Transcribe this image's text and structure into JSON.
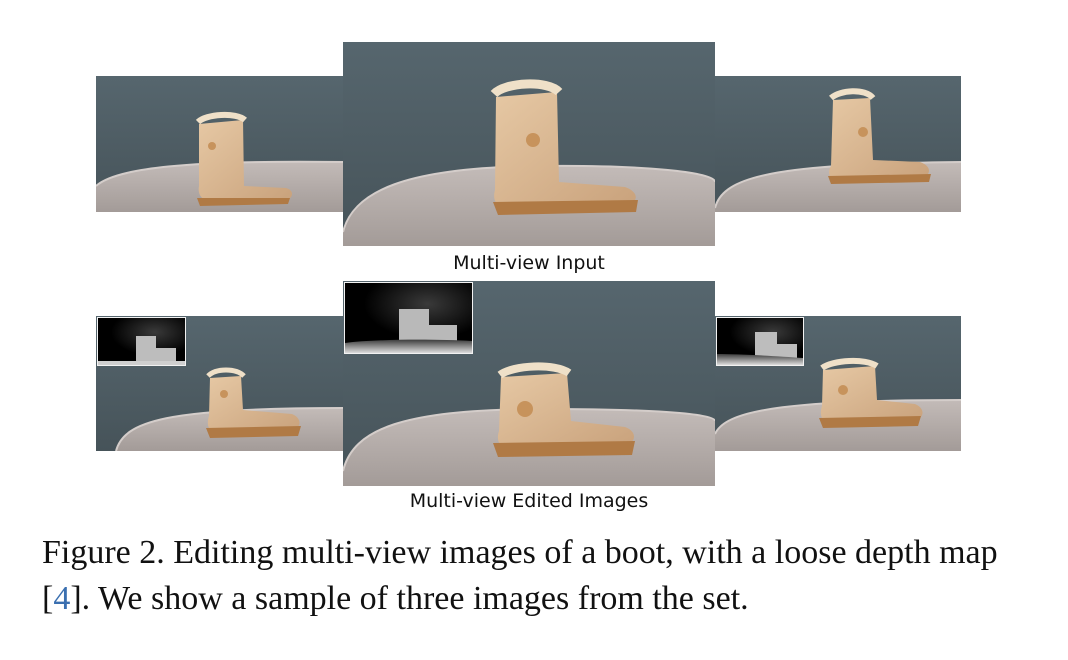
{
  "top_row": {
    "label": "Multi-view Input",
    "images": [
      {
        "name": "input-view-left",
        "kind": "photo",
        "subject": "boot"
      },
      {
        "name": "input-view-center",
        "kind": "photo",
        "subject": "boot"
      },
      {
        "name": "input-view-right",
        "kind": "photo",
        "subject": "boot"
      }
    ]
  },
  "bottom_row": {
    "label": "Multi-view Edited Images",
    "images": [
      {
        "name": "edited-view-left",
        "kind": "photo",
        "subject": "boot",
        "depth_inset": true
      },
      {
        "name": "edited-view-center",
        "kind": "photo",
        "subject": "boot",
        "depth_inset": true
      },
      {
        "name": "edited-view-right",
        "kind": "photo",
        "subject": "boot",
        "depth_inset": true
      }
    ]
  },
  "figure_caption": {
    "prefix": "Figure 2. Editing multi-view images of a boot, with a loose depth map [",
    "ref": "4",
    "suffix": "]. We show a sample of three images from the set."
  },
  "colors": {
    "wall": "#4f5e66",
    "table": "#b3aaa7",
    "boot": "#d9b893",
    "sole": "#b07a45"
  }
}
